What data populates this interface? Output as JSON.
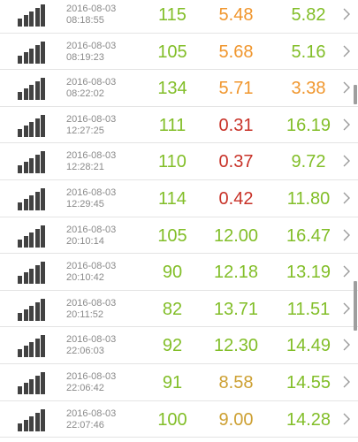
{
  "colors": {
    "green": "#82be28",
    "orange": "#f0962d",
    "red": "#c83228",
    "gold": "#cda032"
  },
  "rows": [
    {
      "date": "2016-08-03",
      "time": "08:18:55",
      "v1": "115",
      "v2": "5.48",
      "v3": "5.82",
      "c1": "green",
      "c2": "orange",
      "c3": "green"
    },
    {
      "date": "2016-08-03",
      "time": "08:19:23",
      "v1": "105",
      "v2": "5.68",
      "v3": "5.16",
      "c1": "green",
      "c2": "orange",
      "c3": "green"
    },
    {
      "date": "2016-08-03",
      "time": "08:22:02",
      "v1": "134",
      "v2": "5.71",
      "v3": "3.38",
      "c1": "green",
      "c2": "orange",
      "c3": "orange"
    },
    {
      "date": "2016-08-03",
      "time": "12:27:25",
      "v1": "111",
      "v2": "0.31",
      "v3": "16.19",
      "c1": "green",
      "c2": "red",
      "c3": "green"
    },
    {
      "date": "2016-08-03",
      "time": "12:28:21",
      "v1": "110",
      "v2": "0.37",
      "v3": "9.72",
      "c1": "green",
      "c2": "red",
      "c3": "green"
    },
    {
      "date": "2016-08-03",
      "time": "12:29:45",
      "v1": "114",
      "v2": "0.42",
      "v3": "11.80",
      "c1": "green",
      "c2": "red",
      "c3": "green"
    },
    {
      "date": "2016-08-03",
      "time": "20:10:14",
      "v1": "105",
      "v2": "12.00",
      "v3": "16.47",
      "c1": "green",
      "c2": "green",
      "c3": "green"
    },
    {
      "date": "2016-08-03",
      "time": "20:10:42",
      "v1": "90",
      "v2": "12.18",
      "v3": "13.19",
      "c1": "green",
      "c2": "green",
      "c3": "green"
    },
    {
      "date": "2016-08-03",
      "time": "20:11:52",
      "v1": "82",
      "v2": "13.71",
      "v3": "11.51",
      "c1": "green",
      "c2": "green",
      "c3": "green"
    },
    {
      "date": "2016-08-03",
      "time": "22:06:03",
      "v1": "92",
      "v2": "12.30",
      "v3": "14.49",
      "c1": "green",
      "c2": "green",
      "c3": "green"
    },
    {
      "date": "2016-08-03",
      "time": "22:06:42",
      "v1": "91",
      "v2": "8.58",
      "v3": "14.55",
      "c1": "green",
      "c2": "gold",
      "c3": "green"
    },
    {
      "date": "2016-08-03",
      "time": "22:07:46",
      "v1": "100",
      "v2": "9.00",
      "v3": "14.28",
      "c1": "green",
      "c2": "gold",
      "c3": "green"
    }
  ],
  "icons": {
    "signal": "signal-bars-icon",
    "chevron": "chevron-right-icon"
  }
}
